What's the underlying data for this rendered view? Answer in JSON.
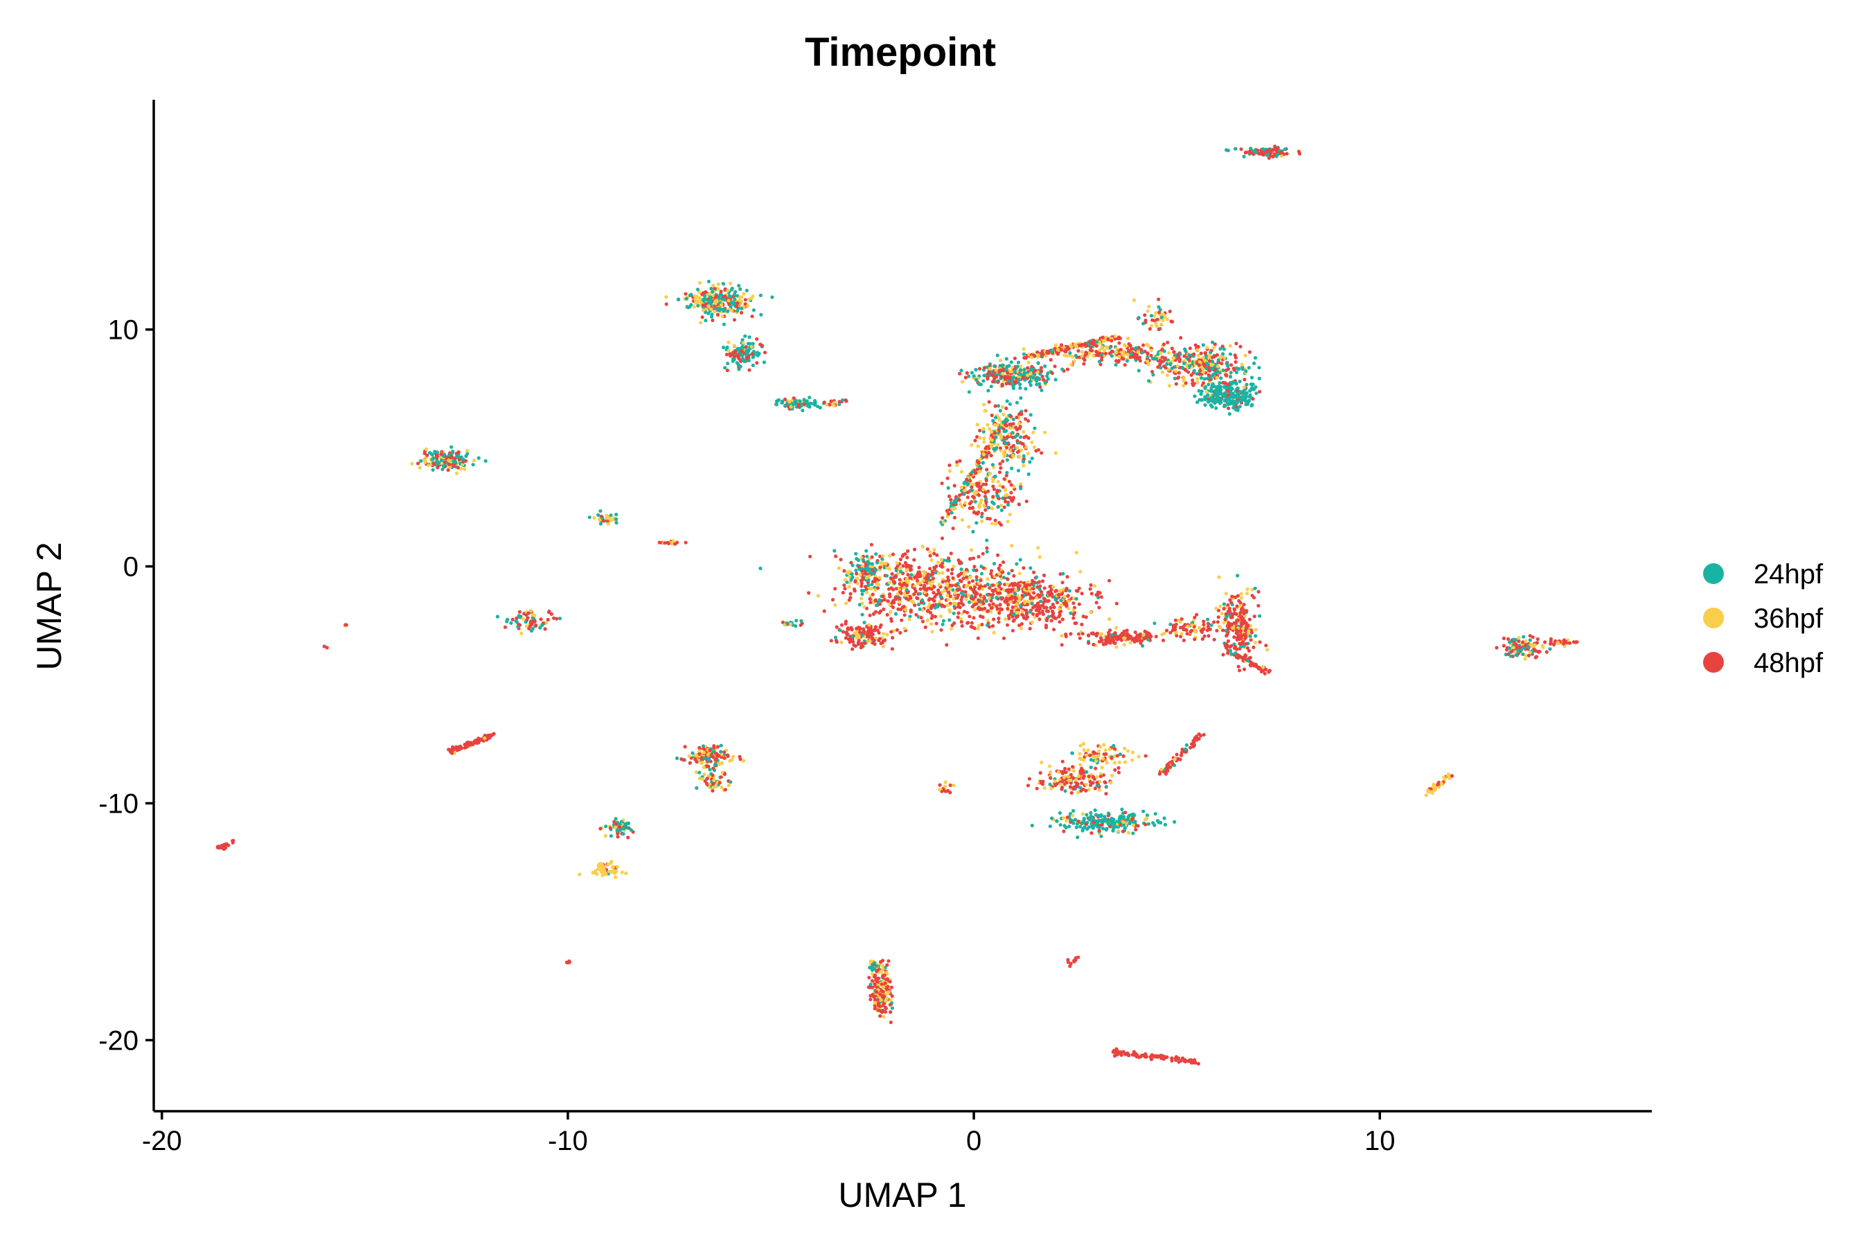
{
  "chart_data": {
    "type": "scatter",
    "title": "Timepoint",
    "xlabel": "UMAP 1",
    "ylabel": "UMAP 2",
    "xlim": [
      -20.2,
      16.7
    ],
    "ylim": [
      -23.0,
      19.7
    ],
    "xticks": [
      {
        "value": -20,
        "label": "-20"
      },
      {
        "value": -10,
        "label": "-10"
      },
      {
        "value": 0,
        "label": "0"
      },
      {
        "value": 10,
        "label": "10"
      }
    ],
    "yticks": [
      {
        "value": 10,
        "label": "10"
      },
      {
        "value": 0,
        "label": "0"
      },
      {
        "value": -10,
        "label": "-10"
      },
      {
        "value": -20,
        "label": "-20"
      }
    ],
    "grid": false,
    "legend_position": "right",
    "series": [
      {
        "name": "24hpf",
        "color": "#1AB3A3"
      },
      {
        "name": "36hpf",
        "color": "#F9CE4B"
      },
      {
        "name": "48hpf",
        "color": "#E8433F"
      }
    ],
    "clusters": [
      {
        "center": [
          7.1,
          17.5
        ],
        "spread": [
          0.55,
          0.15
        ],
        "n": 90,
        "mix": [
          0.3,
          0.05,
          0.65
        ]
      },
      {
        "center": [
          -6.3,
          11.2
        ],
        "spread": [
          0.7,
          0.5
        ],
        "n": 260,
        "mix": [
          0.4,
          0.35,
          0.25
        ]
      },
      {
        "center": [
          -5.7,
          9.0
        ],
        "spread": [
          0.4,
          0.5
        ],
        "n": 120,
        "mix": [
          0.65,
          0.1,
          0.25
        ]
      },
      {
        "center": [
          -4.4,
          6.9
        ],
        "spread": [
          0.5,
          0.2
        ],
        "n": 80,
        "mix": [
          0.55,
          0.25,
          0.2
        ]
      },
      {
        "center": [
          -13.0,
          4.5
        ],
        "spread": [
          0.55,
          0.35
        ],
        "n": 170,
        "mix": [
          0.4,
          0.3,
          0.3
        ]
      },
      {
        "center": [
          -9.1,
          2.0
        ],
        "spread": [
          0.3,
          0.2
        ],
        "n": 30,
        "mix": [
          0.5,
          0.3,
          0.2
        ]
      },
      {
        "center": [
          -7.5,
          1.0
        ],
        "spread": [
          0.3,
          0.07
        ],
        "n": 16,
        "mix": [
          0,
          0.2,
          0.8
        ]
      },
      {
        "center": [
          -10.9,
          -2.3
        ],
        "spread": [
          0.4,
          0.35
        ],
        "n": 70,
        "mix": [
          0.3,
          0.2,
          0.5
        ]
      },
      {
        "center": [
          -15.5,
          -2.5
        ],
        "spread": [
          0.05,
          0.05
        ],
        "n": 3,
        "mix": [
          0,
          0.3,
          0.7
        ]
      },
      {
        "center": [
          -16.0,
          -3.4
        ],
        "spread": [
          0.04,
          0.04
        ],
        "n": 2,
        "mix": [
          0,
          0,
          1
        ]
      },
      {
        "center": [
          -4.5,
          -2.4
        ],
        "spread": [
          0.3,
          0.1
        ],
        "n": 16,
        "mix": [
          0.4,
          0.3,
          0.3
        ]
      },
      {
        "center": [
          1.0,
          8.1
        ],
        "spread": [
          0.9,
          0.45
        ],
        "n": 260,
        "mix": [
          0.5,
          0.15,
          0.35
        ]
      },
      {
        "center": [
          3.5,
          9.0
        ],
        "spread": [
          1.1,
          0.4
        ],
        "n": 180,
        "mix": [
          0.15,
          0.3,
          0.55
        ]
      },
      {
        "center": [
          5.5,
          8.5
        ],
        "spread": [
          1.0,
          0.7
        ],
        "n": 300,
        "mix": [
          0.35,
          0.2,
          0.45
        ]
      },
      {
        "center": [
          6.3,
          7.3
        ],
        "spread": [
          0.6,
          0.5
        ],
        "n": 260,
        "mix": [
          0.8,
          0.05,
          0.15
        ]
      },
      {
        "center": [
          4.5,
          10.6
        ],
        "spread": [
          0.3,
          0.5
        ],
        "n": 40,
        "mix": [
          0.2,
          0.5,
          0.3
        ]
      },
      {
        "center": [
          0.8,
          5.5
        ],
        "spread": [
          0.6,
          1.1
        ],
        "n": 200,
        "mix": [
          0.25,
          0.3,
          0.45
        ]
      },
      {
        "center": [
          0.3,
          3.0
        ],
        "spread": [
          0.8,
          1.0
        ],
        "n": 180,
        "mix": [
          0.2,
          0.3,
          0.5
        ]
      },
      {
        "center": [
          -1.0,
          -1.0
        ],
        "spread": [
          2.0,
          1.3
        ],
        "n": 700,
        "mix": [
          0.12,
          0.25,
          0.63
        ]
      },
      {
        "center": [
          1.5,
          -1.5
        ],
        "spread": [
          1.2,
          0.9
        ],
        "n": 350,
        "mix": [
          0.1,
          0.15,
          0.75
        ]
      },
      {
        "center": [
          -2.6,
          -0.2
        ],
        "spread": [
          0.5,
          0.6
        ],
        "n": 100,
        "mix": [
          0.5,
          0.25,
          0.25
        ]
      },
      {
        "center": [
          -2.8,
          -2.9
        ],
        "spread": [
          0.6,
          0.4
        ],
        "n": 120,
        "mix": [
          0.05,
          0.2,
          0.75
        ]
      },
      {
        "center": [
          3.5,
          -3.0
        ],
        "spread": [
          1.0,
          0.3
        ],
        "n": 100,
        "mix": [
          0.05,
          0.1,
          0.85
        ]
      },
      {
        "center": [
          5.4,
          -2.6
        ],
        "spread": [
          0.6,
          0.4
        ],
        "n": 70,
        "mix": [
          0.1,
          0.3,
          0.6
        ]
      },
      {
        "center": [
          6.5,
          -2.5
        ],
        "spread": [
          0.45,
          1.2
        ],
        "n": 220,
        "mix": [
          0.1,
          0.25,
          0.65
        ]
      },
      {
        "center": [
          13.5,
          -3.4
        ],
        "spread": [
          0.45,
          0.35
        ],
        "n": 120,
        "mix": [
          0.3,
          0.25,
          0.45
        ]
      },
      {
        "center": [
          14.5,
          -3.2
        ],
        "spread": [
          0.35,
          0.12
        ],
        "n": 30,
        "mix": [
          0,
          0.3,
          0.7
        ]
      },
      {
        "center": [
          -6.5,
          -8.0
        ],
        "spread": [
          0.5,
          0.35
        ],
        "n": 130,
        "mix": [
          0.2,
          0.3,
          0.5
        ]
      },
      {
        "center": [
          -6.4,
          -9.0
        ],
        "spread": [
          0.3,
          0.4
        ],
        "n": 60,
        "mix": [
          0.3,
          0.35,
          0.35
        ]
      },
      {
        "center": [
          -8.8,
          -11.0
        ],
        "spread": [
          0.3,
          0.3
        ],
        "n": 50,
        "mix": [
          0.55,
          0.1,
          0.35
        ]
      },
      {
        "center": [
          -9.1,
          -12.8
        ],
        "spread": [
          0.35,
          0.3
        ],
        "n": 50,
        "mix": [
          0.1,
          0.85,
          0.05
        ]
      },
      {
        "center": [
          -0.7,
          -9.4
        ],
        "spread": [
          0.2,
          0.2
        ],
        "n": 14,
        "mix": [
          0,
          0.5,
          0.5
        ]
      },
      {
        "center": [
          2.5,
          -9.0
        ],
        "spread": [
          0.7,
          0.5
        ],
        "n": 140,
        "mix": [
          0.1,
          0.35,
          0.55
        ]
      },
      {
        "center": [
          3.3,
          -10.8
        ],
        "spread": [
          1.0,
          0.35
        ],
        "n": 230,
        "mix": [
          0.75,
          0.1,
          0.15
        ]
      },
      {
        "center": [
          3.2,
          -8.0
        ],
        "spread": [
          0.6,
          0.4
        ],
        "n": 70,
        "mix": [
          0.15,
          0.55,
          0.3
        ]
      },
      {
        "center": [
          -2.3,
          -18.0
        ],
        "spread": [
          0.22,
          0.8
        ],
        "n": 170,
        "mix": [
          0.08,
          0.35,
          0.57
        ]
      },
      {
        "center": [
          -2.4,
          -16.9
        ],
        "spread": [
          0.2,
          0.25
        ],
        "n": 40,
        "mix": [
          0.3,
          0.4,
          0.3
        ]
      },
      {
        "center": [
          -10.0,
          -16.7
        ],
        "spread": [
          0.05,
          0.05
        ],
        "n": 4,
        "mix": [
          0,
          0,
          1
        ]
      }
    ],
    "strands": [
      {
        "from": [
          -12.9,
          -7.8
        ],
        "to": [
          -11.8,
          -7.1
        ],
        "n": 80,
        "mix": [
          0,
          0.05,
          0.95
        ]
      },
      {
        "from": [
          -18.6,
          -11.9
        ],
        "to": [
          -18.2,
          -11.6
        ],
        "n": 20,
        "mix": [
          0,
          0,
          1
        ]
      },
      {
        "from": [
          2.3,
          -16.8
        ],
        "to": [
          2.6,
          -16.5
        ],
        "n": 12,
        "mix": [
          0,
          0,
          1
        ]
      },
      {
        "from": [
          3.4,
          -20.5
        ],
        "to": [
          5.5,
          -20.9
        ],
        "n": 90,
        "mix": [
          0,
          0,
          1
        ]
      },
      {
        "from": [
          11.1,
          -9.6
        ],
        "to": [
          11.8,
          -8.8
        ],
        "n": 40,
        "mix": [
          0,
          0.7,
          0.3
        ]
      },
      {
        "from": [
          4.6,
          -8.8
        ],
        "to": [
          5.6,
          -7.1
        ],
        "n": 60,
        "mix": [
          0.2,
          0.1,
          0.7
        ]
      },
      {
        "from": [
          4.4,
          -3.0
        ],
        "to": [
          3.2,
          -3.1
        ],
        "n": 60,
        "mix": [
          0.05,
          0.15,
          0.8
        ]
      },
      {
        "from": [
          7.3,
          -4.5
        ],
        "to": [
          6.3,
          -3.6
        ],
        "n": 50,
        "mix": [
          0.1,
          0.2,
          0.7
        ]
      },
      {
        "from": [
          1.2,
          8.8
        ],
        "to": [
          3.6,
          9.7
        ],
        "n": 130,
        "mix": [
          0.05,
          0.35,
          0.6
        ]
      },
      {
        "from": [
          -0.8,
          1.8
        ],
        "to": [
          0.9,
          6.5
        ],
        "n": 140,
        "mix": [
          0.3,
          0.3,
          0.4
        ]
      },
      {
        "from": [
          -3.1,
          7.0
        ],
        "to": [
          -3.8,
          6.8
        ],
        "n": 20,
        "mix": [
          0.3,
          0.2,
          0.5
        ]
      }
    ]
  }
}
